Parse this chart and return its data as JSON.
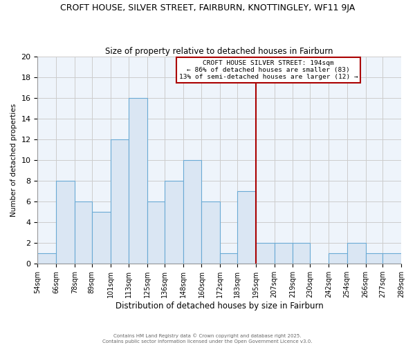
{
  "title": "CROFT HOUSE, SILVER STREET, FAIRBURN, KNOTTINGLEY, WF11 9JA",
  "subtitle": "Size of property relative to detached houses in Fairburn",
  "xlabel": "Distribution of detached houses by size in Fairburn",
  "ylabel": "Number of detached properties",
  "bin_edges": [
    54,
    66,
    78,
    89,
    101,
    113,
    125,
    136,
    148,
    160,
    172,
    183,
    195,
    207,
    219,
    230,
    242,
    254,
    266,
    277,
    289
  ],
  "bar_heights": [
    1,
    8,
    6,
    5,
    12,
    16,
    6,
    8,
    10,
    6,
    1,
    7,
    2,
    2,
    2,
    0,
    1,
    2,
    1,
    1
  ],
  "bar_color": "#dae6f3",
  "bar_edge_color": "#6aaad4",
  "vline_x": 195,
  "vline_color": "#aa0000",
  "ylim": [
    0,
    20
  ],
  "yticks": [
    0,
    2,
    4,
    6,
    8,
    10,
    12,
    14,
    16,
    18,
    20
  ],
  "background_color": "#eef4fb",
  "grid_color": "#cccccc",
  "legend_title": "CROFT HOUSE SILVER STREET: 194sqm",
  "legend_line1": "← 86% of detached houses are smaller (83)",
  "legend_line2": "13% of semi-detached houses are larger (12) →",
  "footnote1": "Contains HM Land Registry data © Crown copyright and database right 2025.",
  "footnote2": "Contains public sector information licensed under the Open Government Licence v3.0.",
  "tick_labels": [
    "54sqm",
    "66sqm",
    "78sqm",
    "89sqm",
    "101sqm",
    "113sqm",
    "125sqm",
    "136sqm",
    "148sqm",
    "160sqm",
    "172sqm",
    "183sqm",
    "195sqm",
    "207sqm",
    "219sqm",
    "230sqm",
    "242sqm",
    "254sqm",
    "266sqm",
    "277sqm",
    "289sqm"
  ]
}
